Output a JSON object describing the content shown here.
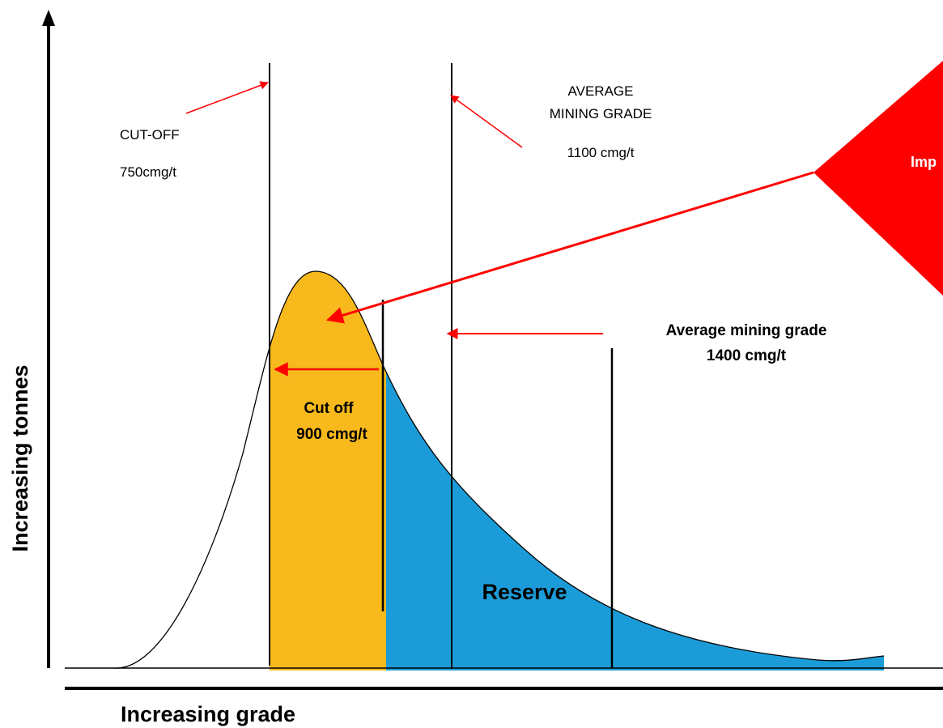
{
  "labels": {
    "cutoff_title": "CUT-OFF",
    "cutoff_value": "750cmg/t",
    "average_line1": "AVERAGE",
    "average_line2": "MINING GRADE",
    "average_value": "1100 cmg/t",
    "callout": "Imp",
    "new_average_title": "Average mining grade",
    "new_average_value": "1400 cmg/t",
    "new_cutoff_title": "Cut off",
    "new_cutoff_value": "900 cmg/t",
    "reserve": "Reserve",
    "y_axis": "Increasing tonnes",
    "x_axis": "Increasing grade"
  }
}
